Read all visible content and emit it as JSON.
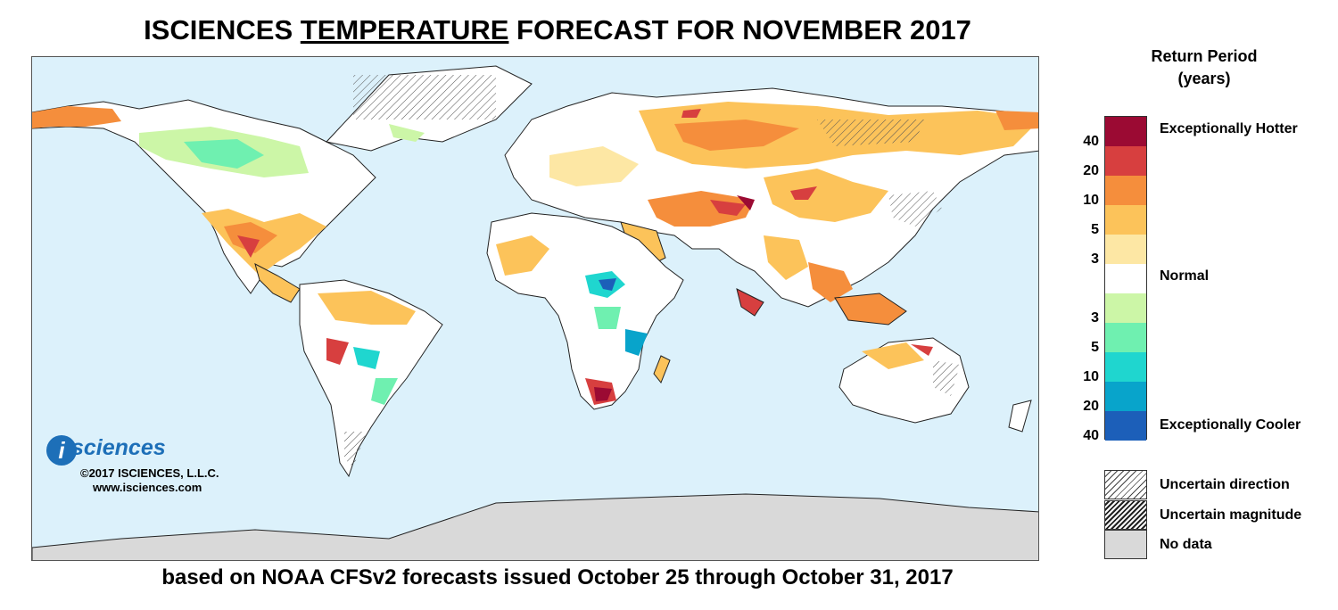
{
  "title": {
    "prefix": "ISCIENCES ",
    "underlined": "TEMPERATURE",
    "suffix": " FORECAST FOR NOVEMBER 2017"
  },
  "subtitle": "based on NOAA CFSv2 forecasts issued October 25 through October 31, 2017",
  "brand": {
    "logo_letter": "i",
    "logo_word": "sciences",
    "copyright": "©2017 ISCIENCES, L.L.C.",
    "url": "www.isciences.com"
  },
  "legend": {
    "title_line1": "Return Period",
    "title_line2": "(years)",
    "scale": [
      {
        "tick": "40",
        "color": "#9b0a33"
      },
      {
        "tick": "20",
        "color": "#d73f3f"
      },
      {
        "tick": "10",
        "color": "#f58e3c"
      },
      {
        "tick": "5",
        "color": "#fcc35a"
      },
      {
        "tick": "3",
        "color": "#fde7a4"
      },
      {
        "tick": "",
        "color": "#ffffff"
      },
      {
        "tick": "3",
        "color": "#ccf6a7"
      },
      {
        "tick": "5",
        "color": "#6ff0b0"
      },
      {
        "tick": "10",
        "color": "#1fd6cf"
      },
      {
        "tick": "20",
        "color": "#08a4cb"
      },
      {
        "tick": "40",
        "color": "#1c5fb9"
      }
    ],
    "hotter_label": "Exceptionally Hotter",
    "normal_label": "Normal",
    "cooler_label": "Exceptionally Cooler",
    "uncertain_direction": "Uncertain direction",
    "uncertain_magnitude": "Uncertain magnitude",
    "no_data": "No data"
  },
  "colors": {
    "ocean": "#dcf1fb",
    "land_normal": "#ffffff",
    "no_data": "#d9d9d9",
    "border": "#222222"
  }
}
